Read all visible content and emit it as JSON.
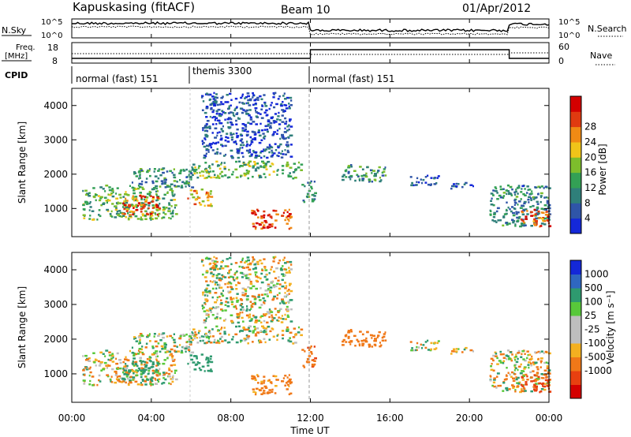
{
  "header": {
    "radar": "Kapuskasing (fitACF)",
    "beam": "Beam 10",
    "date": "01/Apr/2012"
  },
  "top_panels": {
    "nsky_label": "N.Sky",
    "nsearch_label": "N.Search",
    "nsky_ticks": [
      "10^5",
      "10^0"
    ],
    "nsearch_ticks": [
      "10^5",
      "10^0"
    ],
    "freq_label_1": "Freq.",
    "freq_label_2": "[MHz]",
    "freq_ticks": [
      "18",
      "8"
    ],
    "nave_label": "Nave",
    "nave_ticks": [
      "60",
      "0"
    ],
    "cpid_label": "CPID",
    "cpid_segments": [
      {
        "label": "normal (fast) 151",
        "start_h": 0,
        "end_h": 6
      },
      {
        "label": "themis 3300",
        "start_h": 6,
        "end_h": 12
      },
      {
        "label": "normal (fast) 151",
        "start_h": 12,
        "end_h": 24
      }
    ]
  },
  "power_colorbar": {
    "label": "Power [dB]",
    "ticks": [
      "4",
      "8",
      "12",
      "16",
      "20",
      "24",
      "28"
    ],
    "colors": [
      "#1428d8",
      "#2f55a8",
      "#2f7f7a",
      "#33a055",
      "#7dbd2c",
      "#f0c419",
      "#f08a14",
      "#e03a10",
      "#d40000"
    ]
  },
  "velocity_colorbar": {
    "label": "Velocity [m s⁻¹]",
    "ticks": [
      "1000",
      "500",
      "100",
      "25",
      "-25",
      "-100",
      "-500",
      "-1000"
    ],
    "colors": [
      "#1428d8",
      "#2f67c0",
      "#2e9a6f",
      "#58c83a",
      "#bebebe",
      "#bebebe",
      "#f4b020",
      "#f07818",
      "#e84010",
      "#d40000"
    ]
  },
  "chart_data": {
    "type": "heatmap",
    "xlabel": "Time UT",
    "x_ticks": [
      "00:00",
      "04:00",
      "08:00",
      "12:00",
      "16:00",
      "20:00",
      "00:00"
    ],
    "xlim_hours": [
      0,
      24
    ],
    "ylabel": "Slant Range [km]",
    "y_ticks": [
      "1000",
      "2000",
      "3000",
      "4000"
    ],
    "ylim_km": [
      180,
      4500
    ],
    "grid": false,
    "scatter_regions": [
      {
        "t0": 0.5,
        "t1": 5.2,
        "r0": 700,
        "r1": 1700,
        "power": 14,
        "velocity": -60
      },
      {
        "t0": 2.5,
        "t1": 4.5,
        "r0": 800,
        "r1": 1400,
        "power": 24,
        "velocity": 250
      },
      {
        "t0": 3.0,
        "t1": 6.0,
        "r0": 1600,
        "r1": 2200,
        "power": 10,
        "velocity": 20
      },
      {
        "t0": 5.8,
        "t1": 7.0,
        "r0": 1100,
        "r1": 1600,
        "power": 20,
        "velocity": 300
      },
      {
        "t0": 6.0,
        "t1": 11.5,
        "r0": 1900,
        "r1": 2400,
        "power": 14,
        "velocity": 0
      },
      {
        "t0": 6.5,
        "t1": 11.0,
        "r0": 2500,
        "r1": 4400,
        "power": 6,
        "velocity": 0
      },
      {
        "t0": 9.0,
        "t1": 11.0,
        "r0": 400,
        "r1": 1000,
        "power": 26,
        "velocity": -250
      },
      {
        "t0": 11.5,
        "t1": 12.2,
        "r0": 1200,
        "r1": 1900,
        "power": 10,
        "velocity": -400
      },
      {
        "t0": 13.5,
        "t1": 15.8,
        "r0": 1800,
        "r1": 2300,
        "power": 12,
        "velocity": -300
      },
      {
        "t0": 17.0,
        "t1": 18.5,
        "r0": 1700,
        "r1": 2000,
        "power": 8,
        "velocity": 0
      },
      {
        "t0": 19.0,
        "t1": 20.2,
        "r0": 1600,
        "r1": 1800,
        "power": 6,
        "velocity": 0
      },
      {
        "t0": 21.0,
        "t1": 24.0,
        "r0": 500,
        "r1": 1700,
        "power": 10,
        "velocity": -30
      },
      {
        "t0": 22.5,
        "t1": 24.0,
        "r0": 500,
        "r1": 1000,
        "power": 24,
        "velocity": -600
      }
    ]
  }
}
